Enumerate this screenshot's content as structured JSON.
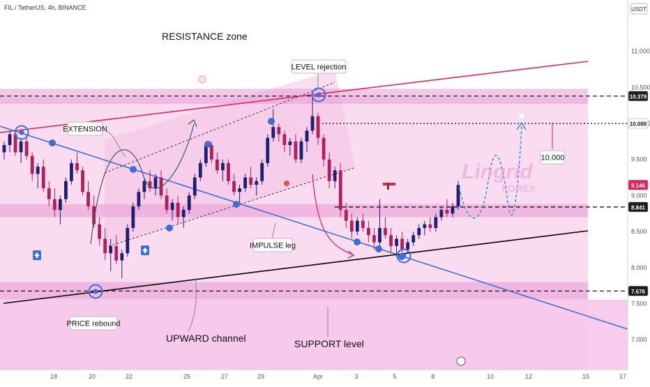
{
  "chart_data": {
    "type": "candlestick",
    "symbol": "FIL / TetherUS, 4h, BINANCE",
    "currency": "USDT",
    "watermark": {
      "brand": "Lingrid",
      "sub": "FOREX"
    },
    "y_ticks": [
      "11.000",
      "10.500",
      "10.000",
      "9.500",
      "9.000",
      "8.500",
      "8.000",
      "7.500",
      "7.000"
    ],
    "y_range": [
      6.5,
      11.75
    ],
    "x_ticks": [
      "18",
      "20",
      "22",
      "25",
      "27",
      "29",
      "Apr",
      "3",
      "5",
      "8",
      "10",
      "12",
      "15",
      "17"
    ],
    "price_labels": [
      {
        "text": "10.379",
        "value": 10.379,
        "style": "dark"
      },
      {
        "text": "10.000",
        "value": 10.0,
        "style": "white"
      },
      {
        "text": "9.146",
        "value": 9.146,
        "style": "red"
      },
      {
        "text": "8.841",
        "value": 8.841,
        "style": "dark"
      },
      {
        "text": "7.676",
        "value": 7.676,
        "style": "dark"
      }
    ],
    "zones": [
      {
        "name": "resistance",
        "top": 10.48,
        "bottom": 10.27
      },
      {
        "name": "mid-box",
        "top": 8.88,
        "bottom": 8.7
      },
      {
        "name": "support",
        "top": 7.8,
        "bottom": 7.56
      }
    ],
    "levels": [
      {
        "value": 10.379,
        "dash": "6,4"
      },
      {
        "value": 10.0,
        "dash": "2,3"
      },
      {
        "value": 8.841,
        "dash": "6,4"
      },
      {
        "value": 7.676,
        "dash": "6,4"
      }
    ],
    "candles": [
      [
        9.6,
        9.75,
        9.5,
        9.7
      ],
      [
        9.7,
        9.9,
        9.6,
        9.85
      ],
      [
        9.85,
        9.9,
        9.55,
        9.6
      ],
      [
        9.6,
        9.8,
        9.45,
        9.75
      ],
      [
        9.75,
        9.85,
        9.5,
        9.55
      ],
      [
        9.55,
        9.6,
        9.2,
        9.3
      ],
      [
        9.3,
        9.45,
        9.1,
        9.4
      ],
      [
        9.4,
        9.5,
        9.05,
        9.1
      ],
      [
        9.1,
        9.2,
        8.85,
        8.95
      ],
      [
        8.95,
        9.1,
        8.7,
        8.8
      ],
      [
        8.8,
        9.0,
        8.6,
        8.95
      ],
      [
        8.95,
        9.25,
        8.9,
        9.2
      ],
      [
        9.2,
        9.5,
        9.15,
        9.45
      ],
      [
        9.45,
        9.6,
        9.3,
        9.35
      ],
      [
        9.35,
        9.4,
        9.0,
        9.05
      ],
      [
        9.05,
        9.2,
        8.8,
        8.85
      ],
      [
        8.85,
        9.0,
        8.55,
        8.6
      ],
      [
        8.6,
        8.7,
        8.3,
        8.4
      ],
      [
        8.4,
        8.55,
        8.1,
        8.2
      ],
      [
        8.2,
        8.4,
        7.95,
        8.3
      ],
      [
        8.3,
        8.45,
        8.05,
        8.1
      ],
      [
        8.1,
        8.25,
        7.85,
        8.2
      ],
      [
        8.2,
        8.6,
        8.15,
        8.55
      ],
      [
        8.55,
        8.9,
        8.5,
        8.85
      ],
      [
        8.85,
        9.1,
        8.8,
        9.05
      ],
      [
        9.05,
        9.25,
        8.95,
        9.2
      ],
      [
        9.2,
        9.35,
        9.05,
        9.1
      ],
      [
        9.1,
        9.3,
        9.0,
        9.25
      ],
      [
        9.25,
        9.35,
        8.95,
        9.0
      ],
      [
        9.0,
        9.1,
        8.75,
        8.8
      ],
      [
        8.8,
        8.95,
        8.65,
        8.9
      ],
      [
        8.9,
        9.0,
        8.6,
        8.7
      ],
      [
        8.7,
        8.85,
        8.55,
        8.8
      ],
      [
        8.8,
        9.05,
        8.75,
        9.0
      ],
      [
        9.0,
        9.3,
        8.95,
        9.25
      ],
      [
        9.25,
        9.5,
        9.2,
        9.45
      ],
      [
        9.45,
        9.75,
        9.4,
        9.7
      ],
      [
        9.7,
        9.75,
        9.45,
        9.5
      ],
      [
        9.5,
        9.6,
        9.3,
        9.35
      ],
      [
        9.35,
        9.5,
        9.2,
        9.45
      ],
      [
        9.45,
        9.5,
        9.15,
        9.2
      ],
      [
        9.2,
        9.3,
        9.0,
        9.05
      ],
      [
        9.05,
        9.15,
        8.9,
        9.1
      ],
      [
        9.1,
        9.3,
        9.05,
        9.25
      ],
      [
        9.25,
        9.4,
        9.1,
        9.15
      ],
      [
        9.15,
        9.25,
        9.0,
        9.2
      ],
      [
        9.2,
        9.5,
        9.15,
        9.45
      ],
      [
        9.45,
        9.85,
        9.4,
        9.8
      ],
      [
        9.8,
        10.2,
        9.75,
        9.95
      ],
      [
        9.95,
        10.0,
        9.75,
        9.85
      ],
      [
        9.85,
        9.9,
        9.6,
        9.7
      ],
      [
        9.7,
        9.8,
        9.55,
        9.75
      ],
      [
        9.75,
        9.85,
        9.45,
        9.5
      ],
      [
        9.5,
        9.8,
        9.45,
        9.75
      ],
      [
        9.75,
        9.95,
        9.6,
        9.9
      ],
      [
        9.9,
        10.4,
        9.85,
        10.1
      ],
      [
        10.1,
        10.15,
        9.7,
        9.8
      ],
      [
        9.8,
        9.85,
        9.4,
        9.5
      ],
      [
        9.5,
        9.6,
        9.1,
        9.2
      ],
      [
        9.2,
        9.4,
        9.1,
        9.35
      ],
      [
        9.35,
        9.45,
        8.7,
        8.8
      ],
      [
        8.8,
        8.9,
        8.55,
        8.65
      ],
      [
        8.65,
        8.75,
        8.4,
        8.5
      ],
      [
        8.5,
        8.7,
        8.45,
        8.65
      ],
      [
        8.65,
        8.75,
        8.5,
        8.55
      ],
      [
        8.55,
        8.65,
        8.35,
        8.45
      ],
      [
        8.45,
        8.55,
        8.25,
        8.35
      ],
      [
        8.35,
        8.95,
        8.3,
        8.55
      ],
      [
        8.55,
        8.7,
        8.4,
        8.45
      ],
      [
        8.45,
        8.55,
        8.2,
        8.3
      ],
      [
        8.3,
        8.45,
        8.15,
        8.4
      ],
      [
        8.4,
        8.5,
        8.15,
        8.25
      ],
      [
        8.25,
        8.4,
        8.2,
        8.35
      ],
      [
        8.35,
        8.5,
        8.3,
        8.45
      ],
      [
        8.45,
        8.6,
        8.4,
        8.55
      ],
      [
        8.55,
        8.65,
        8.45,
        8.6
      ],
      [
        8.6,
        8.7,
        8.5,
        8.55
      ],
      [
        8.55,
        8.75,
        8.5,
        8.7
      ],
      [
        8.7,
        8.85,
        8.65,
        8.8
      ],
      [
        8.8,
        8.95,
        8.7,
        8.75
      ],
      [
        8.75,
        8.9,
        8.7,
        8.85
      ],
      [
        8.85,
        9.2,
        8.8,
        9.146
      ]
    ],
    "annotations": [
      {
        "text": "RESISTANCE zone",
        "style": "big-plain"
      },
      {
        "text": "LEVEL rejection",
        "style": "box"
      },
      {
        "text": "EXTENSION",
        "style": "box"
      },
      {
        "text": "IMPULSE leg",
        "style": "box"
      },
      {
        "text": "PRICE rebound",
        "style": "box"
      },
      {
        "text": "UPWARD channel",
        "style": "big-plain"
      },
      {
        "text": "SUPPORT level",
        "style": "big-plain"
      },
      {
        "text": "10.000",
        "style": "box"
      }
    ]
  }
}
